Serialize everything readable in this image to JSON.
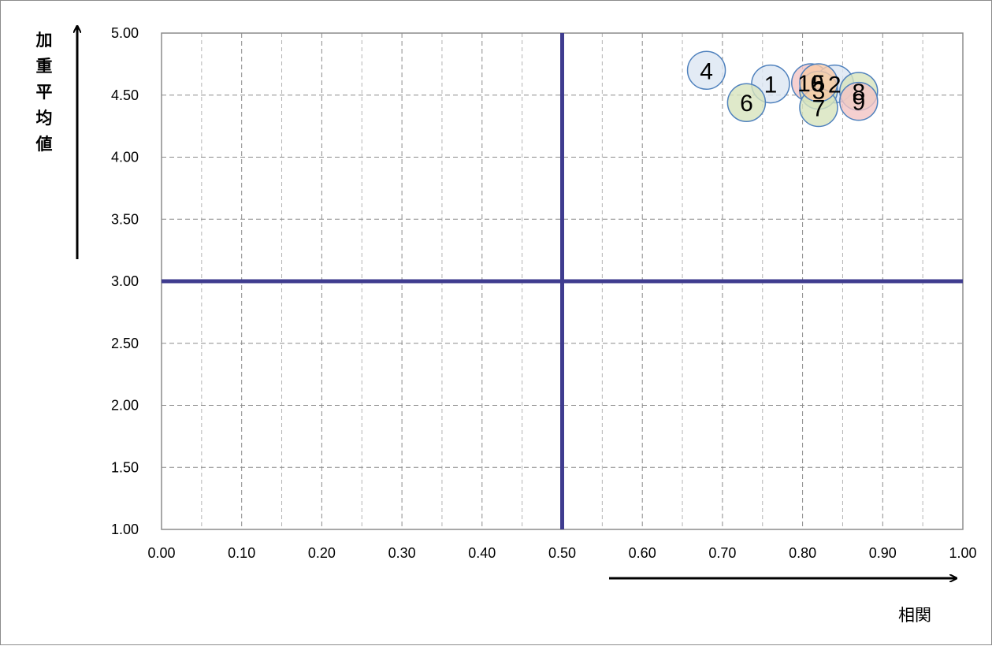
{
  "chart_data": {
    "type": "scatter",
    "title": "",
    "xlabel": "相関",
    "ylabel": "加重平均値",
    "xlim": [
      0,
      1
    ],
    "ylim": [
      1,
      5
    ],
    "x_ticks": [
      "0.00",
      "0.10",
      "0.20",
      "0.30",
      "0.40",
      "0.50",
      "0.60",
      "0.70",
      "0.80",
      "0.90",
      "1.00"
    ],
    "y_ticks": [
      "1.00",
      "1.50",
      "2.00",
      "2.50",
      "3.00",
      "3.50",
      "4.00",
      "4.50",
      "5.00"
    ],
    "grid": true,
    "reference_lines": {
      "x": 0.5,
      "y": 3.0,
      "color": "#3f3c8f"
    },
    "points": [
      {
        "label": "1",
        "x": 0.76,
        "y": 4.59,
        "color": "#dce6f2"
      },
      {
        "label": "2",
        "x": 0.84,
        "y": 4.59,
        "color": "#dce6f2"
      },
      {
        "label": "3",
        "x": 0.82,
        "y": 4.54,
        "color": "#d7e4bd"
      },
      {
        "label": "4",
        "x": 0.68,
        "y": 4.7,
        "color": "#dce6f2"
      },
      {
        "label": "5",
        "x": 0.82,
        "y": 4.6,
        "color": "#f9c9a6"
      },
      {
        "label": "6",
        "x": 0.73,
        "y": 4.44,
        "color": "#d7e4bd"
      },
      {
        "label": "7",
        "x": 0.82,
        "y": 4.4,
        "color": "#d7e4bd"
      },
      {
        "label": "8",
        "x": 0.87,
        "y": 4.53,
        "color": "#d7e4bd"
      },
      {
        "label": "9",
        "x": 0.87,
        "y": 4.45,
        "color": "#f2c4c4"
      },
      {
        "label": "10",
        "x": 0.81,
        "y": 4.6,
        "color": "#f2c4c4"
      }
    ],
    "point_order": [
      3,
      0,
      5,
      9,
      1,
      2,
      6,
      7,
      8,
      4
    ],
    "label_order": [
      3,
      0,
      5,
      9,
      4,
      1,
      2,
      6,
      7,
      8
    ]
  }
}
